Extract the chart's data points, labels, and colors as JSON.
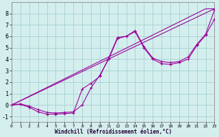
{
  "xlabel": "Windchill (Refroidissement éolien,°C)",
  "bg_color": "#d4eeee",
  "grid_color": "#aad4d4",
  "line_color": "#990099",
  "xlim": [
    0,
    23
  ],
  "ylim": [
    -1.5,
    9
  ],
  "xticks": [
    0,
    1,
    2,
    3,
    4,
    5,
    6,
    7,
    8,
    9,
    10,
    11,
    12,
    13,
    14,
    15,
    16,
    17,
    18,
    19,
    20,
    21,
    22,
    23
  ],
  "yticks": [
    -1,
    0,
    1,
    2,
    3,
    4,
    5,
    6,
    7,
    8
  ],
  "series": [
    {
      "x": [
        0,
        23
      ],
      "y": [
        0.0,
        8.4
      ],
      "markers": false
    },
    {
      "x": [
        0,
        22,
        23
      ],
      "y": [
        0.0,
        8.4,
        8.4
      ],
      "markers": false
    },
    {
      "x": [
        0,
        1,
        2,
        3,
        4,
        5,
        6,
        7,
        8,
        9,
        10,
        11,
        12,
        13,
        14,
        15,
        16,
        17,
        18,
        19,
        20,
        21,
        22,
        23
      ],
      "y": [
        0.0,
        0.05,
        -0.2,
        -0.6,
        -0.8,
        -0.8,
        -0.75,
        -0.7,
        1.4,
        1.9,
        2.5,
        4.1,
        5.9,
        6.0,
        6.5,
        5.1,
        4.1,
        3.8,
        3.7,
        3.8,
        4.2,
        5.3,
        6.2,
        8.3
      ],
      "markers": true
    },
    {
      "x": [
        0,
        1,
        2,
        3,
        4,
        5,
        6,
        7,
        8,
        9,
        10,
        11,
        12,
        13,
        14,
        15,
        16,
        17,
        18,
        19,
        20,
        21,
        22,
        23
      ],
      "y": [
        0.0,
        0.1,
        -0.1,
        -0.4,
        -0.65,
        -0.7,
        -0.65,
        -0.6,
        0.0,
        1.5,
        2.6,
        4.0,
        5.8,
        6.0,
        6.4,
        5.0,
        4.0,
        3.6,
        3.55,
        3.7,
        4.0,
        5.2,
        6.1,
        7.5
      ],
      "markers": true
    }
  ]
}
